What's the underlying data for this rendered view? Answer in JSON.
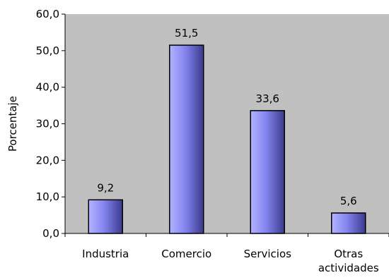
{
  "chart_data": {
    "type": "bar",
    "categories": [
      [
        "Industria"
      ],
      [
        "Comercio"
      ],
      [
        "Servicios"
      ],
      [
        "Otras",
        "actividades"
      ]
    ],
    "values": [
      9.2,
      51.5,
      33.6,
      5.6
    ],
    "data_labels": [
      "9,2",
      "51,5",
      "33,6",
      "5,6"
    ],
    "ylabel": "Porcentaje",
    "ylim": [
      0,
      60
    ],
    "yticks": [
      0,
      10,
      20,
      30,
      40,
      50,
      60
    ],
    "ytick_labels": [
      "0,0",
      "10,0",
      "20,0",
      "30,0",
      "40,0",
      "50,0",
      "60,0"
    ],
    "grid": false,
    "legend": "none",
    "colors": {
      "plot_background": "#c0c0c0",
      "bar_light": "#b3b3ff",
      "bar_mid": "#8585f0",
      "bar_dark": "#3a3a8c",
      "bar_outline": "#000000"
    }
  }
}
